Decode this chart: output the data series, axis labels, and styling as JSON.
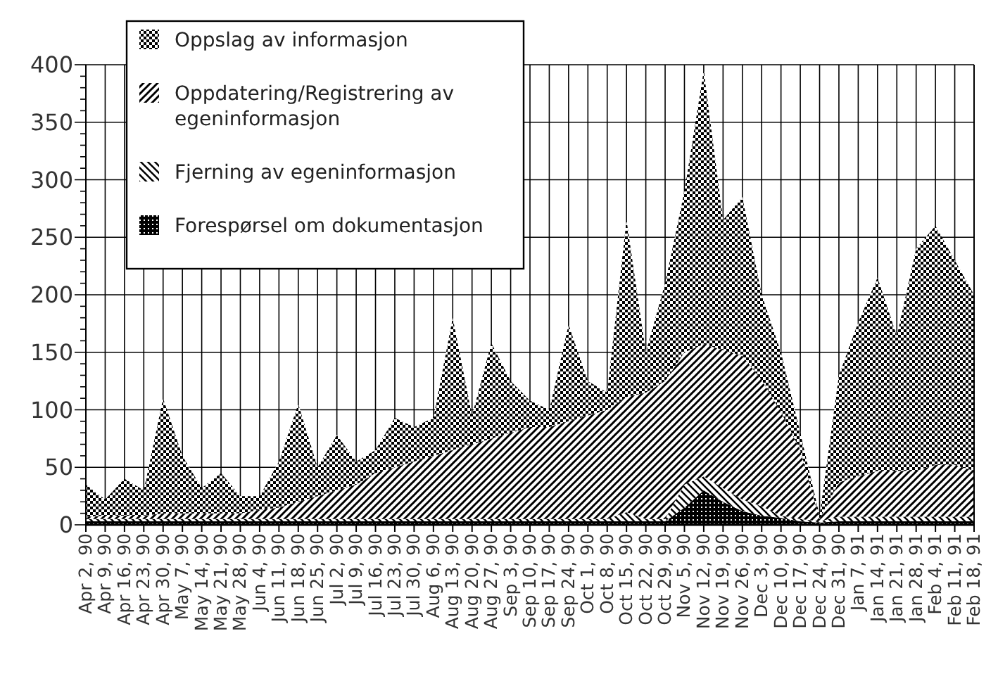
{
  "chart_data": {
    "type": "area",
    "stacked": true,
    "grid": true,
    "legend": "top left",
    "categories": [
      "Apr 2, 90",
      "Apr 9, 90",
      "Apr 16, 90",
      "Apr 23, 90",
      "Apr 30, 90",
      "May 7, 90",
      "May 14, 90",
      "May 21, 90",
      "May 28, 90",
      "Jun 4, 90",
      "Jun 11, 90",
      "Jun 18, 90",
      "Jun 25, 90",
      "Jul 2, 90",
      "Jul 9, 90",
      "Jul 16, 90",
      "Jul 23, 90",
      "Jul 30, 90",
      "Aug 6, 90",
      "Aug 13, 90",
      "Aug 20, 90",
      "Aug 27, 90",
      "Sep 3, 90",
      "Sep 10, 90",
      "Sep 17, 90",
      "Sep 24, 90",
      "Oct 1, 90",
      "Oct 8, 90",
      "Oct 15, 90",
      "Oct 22, 90",
      "Oct 29, 90",
      "Nov 5, 90",
      "Nov 12, 90",
      "Nov 19, 90",
      "Nov 26, 90",
      "Dec 3, 90",
      "Dec 10, 90",
      "Dec 17, 90",
      "Dec 24, 90",
      "Dec 31, 90",
      "Jan 7, 91",
      "Jan 14, 91",
      "Jan 21, 91",
      "Jan 28, 91",
      "Feb 4, 91",
      "Feb 11, 91",
      "Feb 18, 91"
    ],
    "ylim": [
      0,
      400
    ],
    "yticks": [
      0,
      {
        "value": 10,
        "label": null
      },
      {
        "value": 20,
        "label": null
      },
      {
        "value": 30,
        "label": null
      },
      {
        "value": 40,
        "label": null
      },
      50,
      {
        "value": 60,
        "label": null
      },
      {
        "value": 70,
        "label": null
      },
      {
        "value": 80,
        "label": null
      },
      {
        "value": 90,
        "label": null
      },
      100,
      {
        "value": 110,
        "label": null
      },
      {
        "value": 120,
        "label": null
      },
      {
        "value": 130,
        "label": null
      },
      {
        "value": 140,
        "label": null
      },
      150,
      {
        "value": 160,
        "label": null
      },
      {
        "value": 170,
        "label": null
      },
      {
        "value": 180,
        "label": null
      },
      {
        "value": 190,
        "label": null
      },
      200,
      {
        "value": 210,
        "label": null
      },
      {
        "value": 220,
        "label": null
      },
      {
        "value": 230,
        "label": null
      },
      {
        "value": 240,
        "label": null
      },
      250,
      {
        "value": 260,
        "label": null
      },
      {
        "value": 270,
        "label": null
      },
      {
        "value": 280,
        "label": null
      },
      {
        "value": 290,
        "label": null
      },
      300,
      {
        "value": 310,
        "label": null
      },
      {
        "value": 320,
        "label": null
      },
      {
        "value": 330,
        "label": null
      },
      {
        "value": 340,
        "label": null
      },
      350,
      {
        "value": 360,
        "label": null
      },
      {
        "value": 370,
        "label": null
      },
      {
        "value": 380,
        "label": null
      },
      {
        "value": 390,
        "label": null
      },
      400
    ],
    "series": [
      {
        "name": "Forespørsel om dokumentasjon",
        "color": "#000000",
        "values": [
          3,
          3,
          3,
          3,
          3,
          3,
          3,
          3,
          3,
          3,
          3,
          3,
          3,
          3,
          3,
          3,
          3,
          3,
          3,
          3,
          3,
          3,
          3,
          3,
          3,
          3,
          3,
          3,
          3,
          3,
          3,
          15,
          30,
          20,
          12,
          8,
          6,
          3,
          2,
          3,
          3,
          3,
          3,
          3,
          3,
          3,
          3
        ]
      },
      {
        "name": "Fjerning av egeninformasjon",
        "color": "#000000",
        "values": [
          2,
          2,
          2,
          2,
          2,
          2,
          2,
          2,
          2,
          2,
          2,
          2,
          2,
          2,
          2,
          2,
          2,
          2,
          2,
          2,
          2,
          2,
          2,
          2,
          2,
          2,
          2,
          2,
          8,
          2,
          2,
          20,
          12,
          12,
          10,
          8,
          2,
          2,
          1,
          4,
          4,
          4,
          4,
          4,
          4,
          4,
          4
        ]
      },
      {
        "name": "Oppdatering/Registrering av egeninformasjon",
        "color": "#000000",
        "values": [
          2,
          3,
          3,
          3,
          5,
          5,
          5,
          5,
          5,
          8,
          10,
          15,
          20,
          25,
          30,
          40,
          45,
          50,
          55,
          60,
          65,
          70,
          75,
          80,
          80,
          85,
          90,
          95,
          100,
          110,
          120,
          115,
          115,
          120,
          125,
          110,
          90,
          60,
          2,
          30,
          35,
          40,
          40,
          40,
          45,
          45,
          40
        ]
      },
      {
        "name": "Oppslag av informasjon",
        "color": "#000000",
        "values": [
          28,
          14,
          32,
          22,
          100,
          50,
          22,
          35,
          15,
          12,
          40,
          85,
          25,
          48,
          20,
          20,
          43,
          30,
          33,
          115,
          25,
          83,
          45,
          23,
          15,
          84,
          30,
          15,
          154,
          35,
          85,
          140,
          238,
          113,
          138,
          74,
          52,
          15,
          3,
          93,
          134,
          168,
          117,
          193,
          208,
          178,
          153
        ]
      }
    ]
  }
}
